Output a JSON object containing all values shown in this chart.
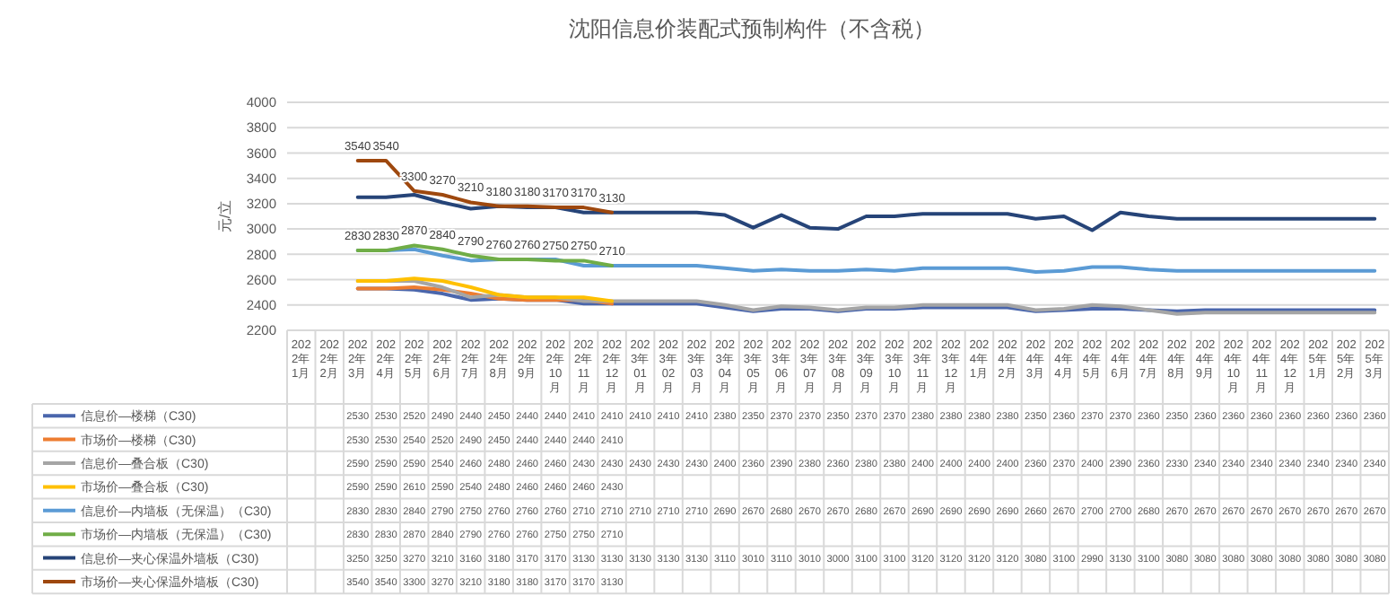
{
  "chart_data": {
    "type": "line",
    "title": "沈阳信息价装配式预制构件（不含税）",
    "ylabel": "元/立",
    "categories": [
      "2022年1月",
      "2022年2月",
      "2022年3月",
      "2022年4月",
      "2022年5月",
      "2022年6月",
      "2022年7月",
      "2022年8月",
      "2022年9月",
      "2022年10月",
      "2022年11月",
      "2022年12月",
      "2023年01月",
      "2023年02月",
      "2023年03月",
      "2023年04月",
      "2023年05月",
      "2023年06月",
      "2023年07月",
      "2023年08月",
      "2023年09月",
      "2023年10月",
      "2023年11月",
      "2023年12月",
      "2024年1月",
      "2024年2月",
      "2024年3月",
      "2024年4月",
      "2024年5月",
      "2024年6月",
      "2024年7月",
      "2024年8月",
      "2024年9月",
      "2024年10月",
      "2024年11月",
      "2024年12月",
      "2025年1月",
      "2025年2月",
      "2025年3月"
    ],
    "ylim": [
      2200,
      4000
    ],
    "yticks": [
      2200,
      2400,
      2600,
      2800,
      3000,
      3200,
      3400,
      3600,
      3800,
      4000
    ],
    "grid": "y",
    "legend": "bottom",
    "data_labels": true,
    "marker": "none",
    "line_style": "solid",
    "series": [
      {
        "name": "信息价—楼梯（C30)",
        "color": "#4a66ac",
        "values": [
          null,
          null,
          2530,
          2530,
          2520,
          2490,
          2440,
          2450,
          2440,
          2440,
          2410,
          2410,
          2410,
          2410,
          2410,
          2380,
          2350,
          2370,
          2370,
          2350,
          2370,
          2370,
          2380,
          2380,
          2380,
          2380,
          2350,
          2360,
          2370,
          2370,
          2360,
          2350,
          2360,
          2360,
          2360,
          2360,
          2360,
          2360,
          2360
        ]
      },
      {
        "name": "市场价—楼梯（C30)",
        "color": "#ed7d31",
        "values": [
          null,
          null,
          2530,
          2530,
          2540,
          2520,
          2490,
          2450,
          2440,
          2440,
          2440,
          2410,
          null,
          null,
          null,
          null,
          null,
          null,
          null,
          null,
          null,
          null,
          null,
          null,
          null,
          null,
          null,
          null,
          null,
          null,
          null,
          null,
          null,
          null,
          null,
          null,
          null,
          null,
          null
        ]
      },
      {
        "name": "信息价—叠合板（C30)",
        "color": "#a5a5a5",
        "values": [
          null,
          null,
          2590,
          2590,
          2590,
          2540,
          2460,
          2480,
          2460,
          2460,
          2430,
          2430,
          2430,
          2430,
          2430,
          2400,
          2360,
          2390,
          2380,
          2360,
          2380,
          2380,
          2400,
          2400,
          2400,
          2400,
          2360,
          2370,
          2400,
          2390,
          2360,
          2330,
          2340,
          2340,
          2340,
          2340,
          2340,
          2340,
          2340
        ]
      },
      {
        "name": "市场价—叠合板（C30)",
        "color": "#ffc000",
        "values": [
          null,
          null,
          2590,
          2590,
          2610,
          2590,
          2540,
          2480,
          2460,
          2460,
          2460,
          2430,
          null,
          null,
          null,
          null,
          null,
          null,
          null,
          null,
          null,
          null,
          null,
          null,
          null,
          null,
          null,
          null,
          null,
          null,
          null,
          null,
          null,
          null,
          null,
          null,
          null,
          null,
          null
        ]
      },
      {
        "name": "信息价—内墙板（无保温）（C30)",
        "color": "#5b9bd5",
        "values": [
          null,
          null,
          2830,
          2830,
          2840,
          2790,
          2750,
          2760,
          2760,
          2760,
          2710,
          2710,
          2710,
          2710,
          2710,
          2690,
          2670,
          2680,
          2670,
          2670,
          2680,
          2670,
          2690,
          2690,
          2690,
          2690,
          2660,
          2670,
          2700,
          2700,
          2680,
          2670,
          2670,
          2670,
          2670,
          2670,
          2670,
          2670,
          2670
        ]
      },
      {
        "name": "市场价—内墙板（无保温）（C30)",
        "color": "#70ad47",
        "values": [
          null,
          null,
          2830,
          2830,
          2870,
          2840,
          2790,
          2760,
          2760,
          2750,
          2750,
          2710,
          null,
          null,
          null,
          null,
          null,
          null,
          null,
          null,
          null,
          null,
          null,
          null,
          null,
          null,
          null,
          null,
          null,
          null,
          null,
          null,
          null,
          null,
          null,
          null,
          null,
          null,
          null
        ],
        "value_labels": [
          null,
          null,
          "2830",
          "2830",
          "2870",
          "2840",
          "2790",
          "2760",
          "2760",
          "2750",
          "2750",
          "2710",
          null,
          null,
          null,
          null,
          null,
          null,
          null,
          null,
          null,
          null,
          null,
          null,
          null,
          null,
          null,
          null,
          null,
          null,
          null,
          null,
          null,
          null,
          null,
          null,
          null,
          null,
          null
        ]
      },
      {
        "name": "信息价—夹心保温外墙板（C30)",
        "color": "#264478",
        "values": [
          null,
          null,
          3250,
          3250,
          3270,
          3210,
          3160,
          3180,
          3170,
          3170,
          3130,
          3130,
          3130,
          3130,
          3130,
          3110,
          3010,
          3110,
          3010,
          3000,
          3100,
          3100,
          3120,
          3120,
          3120,
          3120,
          3080,
          3100,
          2990,
          3130,
          3100,
          3080,
          3080,
          3080,
          3080,
          3080,
          3080,
          3080,
          3080
        ]
      },
      {
        "name": "市场价—夹心保温外墙板（C30)",
        "color": "#9e480e",
        "values": [
          null,
          null,
          3540,
          3540,
          3300,
          3270,
          3210,
          3180,
          3180,
          3170,
          3170,
          3130,
          null,
          null,
          null,
          null,
          null,
          null,
          null,
          null,
          null,
          null,
          null,
          null,
          null,
          null,
          null,
          null,
          null,
          null,
          null,
          null,
          null,
          null,
          null,
          null,
          null,
          null,
          null
        ],
        "value_labels": [
          null,
          null,
          "3540",
          "3540",
          "3300",
          "3270",
          "3210",
          "3180",
          "3180",
          "3170",
          "3170",
          "3130",
          null,
          null,
          null,
          null,
          null,
          null,
          null,
          null,
          null,
          null,
          null,
          null,
          null,
          null,
          null,
          null,
          null,
          null,
          null,
          null,
          null,
          null,
          null,
          null,
          null,
          null,
          null
        ]
      }
    ]
  }
}
